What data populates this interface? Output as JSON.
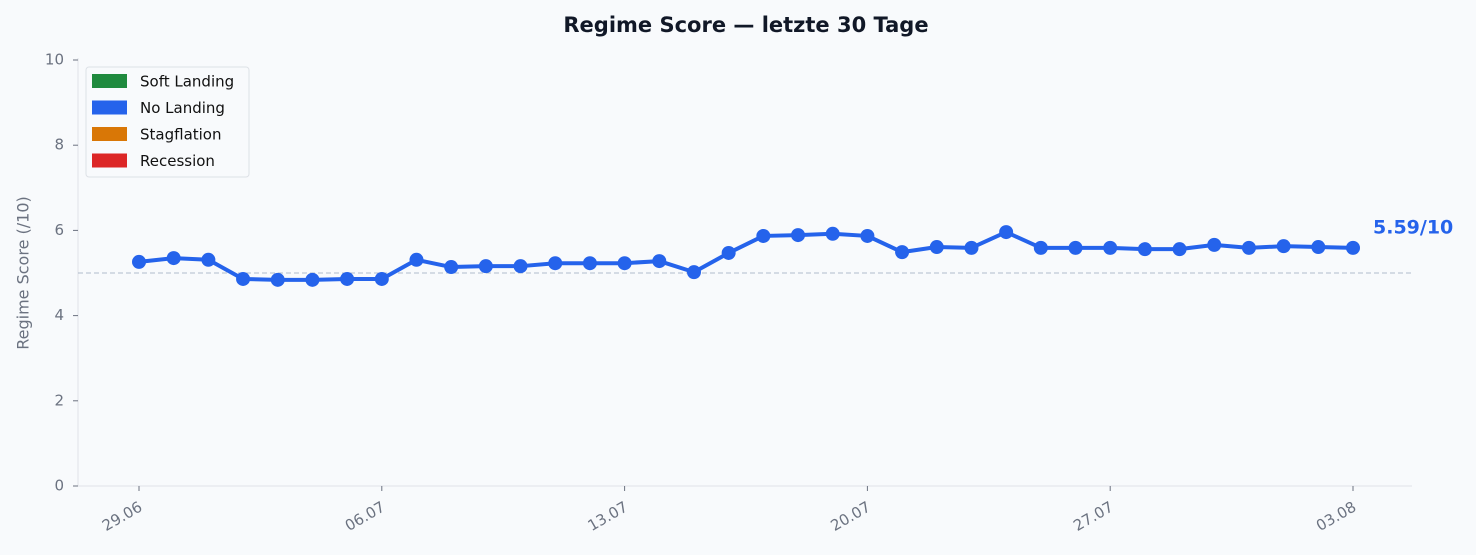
{
  "chart_data": {
    "type": "line",
    "title": "Regime Score — letzte 30 Tage",
    "y_label": "Regime Score (/10)",
    "categories": [
      "29.06",
      null,
      null,
      null,
      null,
      null,
      null,
      "06.07",
      null,
      null,
      null,
      null,
      null,
      null,
      "13.07",
      null,
      null,
      null,
      null,
      null,
      null,
      "20.07",
      null,
      null,
      null,
      null,
      null,
      null,
      "27.07",
      null,
      null,
      null,
      null,
      null,
      null,
      "03.08"
    ],
    "series": [
      {
        "name": "Regime Score",
        "color": "#2563eb",
        "values": [
          5.26,
          5.35,
          5.31,
          4.86,
          4.84,
          4.84,
          4.86,
          4.86,
          5.31,
          5.14,
          5.16,
          5.16,
          5.23,
          5.23,
          5.23,
          5.28,
          5.02,
          5.47,
          5.87,
          5.89,
          5.92,
          5.87,
          5.49,
          5.61,
          5.59,
          5.96,
          5.59,
          5.59,
          5.59,
          5.56,
          5.56,
          5.66,
          5.59,
          5.63,
          5.61,
          5.59
        ]
      }
    ],
    "annotation": "5.59/10",
    "reference_line": 5,
    "legend": [
      {
        "name": "Soft Landing",
        "color": "#1f8a3e"
      },
      {
        "name": "No Landing",
        "color": "#2563eb"
      },
      {
        "name": "Stagflation",
        "color": "#d97706"
      },
      {
        "name": "Recession",
        "color": "#dc2626"
      }
    ],
    "legend_position": "upper left",
    "ylim": [
      0,
      10
    ],
    "yticks": [
      0,
      2,
      4,
      6,
      8,
      10
    ]
  }
}
